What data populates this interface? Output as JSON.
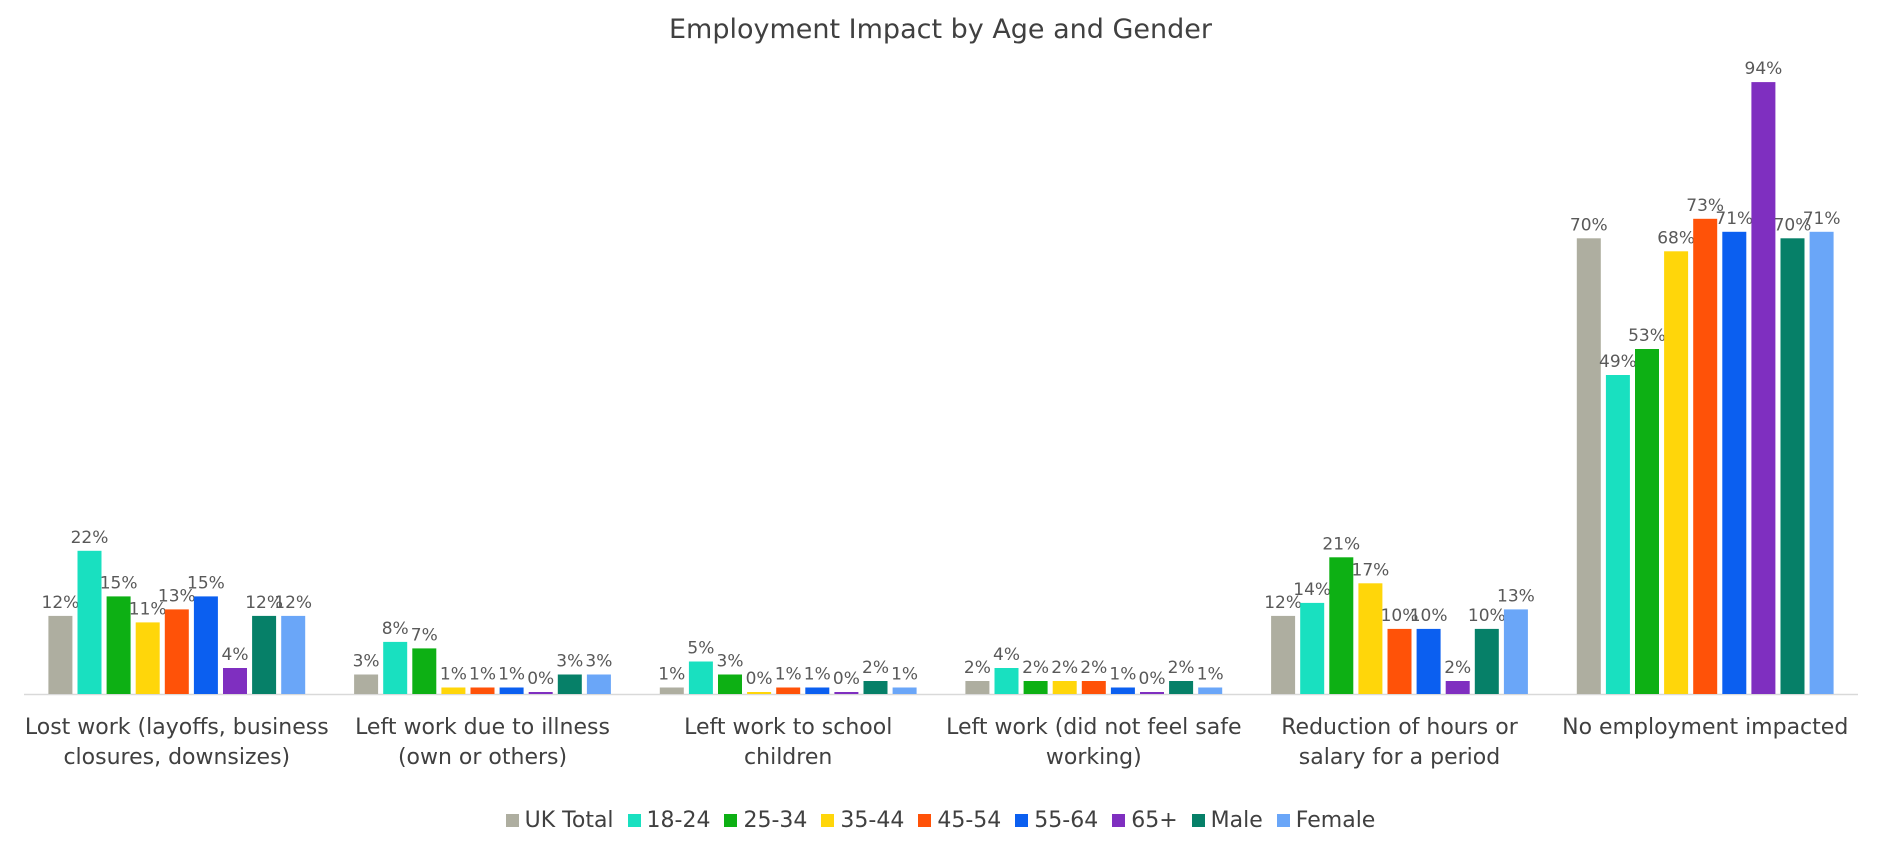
{
  "chart_data": {
    "type": "bar",
    "title": "Employment Impact by Age and Gender",
    "xlabel": "",
    "ylabel": "",
    "ylim": [
      0,
      100
    ],
    "grid": false,
    "legend_position": "bottom",
    "categories": [
      [
        "Lost work (layoffs, business",
        "closures, downsizes)"
      ],
      [
        "Left work due to illness",
        "(own or others)"
      ],
      [
        "Left work to school",
        "children"
      ],
      [
        "Left work (did not feel safe",
        "working)"
      ],
      [
        "Reduction of hours or",
        "salary for a period"
      ],
      [
        "No employment impacted"
      ]
    ],
    "series": [
      {
        "name": "UK Total",
        "color": "#aeaea0",
        "values": [
          12,
          3,
          1,
          2,
          12,
          70
        ]
      },
      {
        "name": "18-24",
        "color": "#19e0c0",
        "values": [
          22,
          8,
          5,
          4,
          14,
          49
        ]
      },
      {
        "name": "25-34",
        "color": "#0db014",
        "values": [
          15,
          7,
          3,
          2,
          21,
          53
        ]
      },
      {
        "name": "35-44",
        "color": "#ffd60a",
        "values": [
          11,
          1,
          0,
          2,
          17,
          68
        ]
      },
      {
        "name": "45-54",
        "color": "#ff5208",
        "values": [
          13,
          1,
          1,
          2,
          10,
          73
        ]
      },
      {
        "name": "55-64",
        "color": "#0b5ff0",
        "values": [
          15,
          1,
          1,
          1,
          10,
          71
        ]
      },
      {
        "name": "65+",
        "color": "#7f2fc0",
        "values": [
          4,
          0,
          0,
          0,
          2,
          94
        ]
      },
      {
        "name": "Male",
        "color": "#068068",
        "values": [
          12,
          3,
          2,
          2,
          10,
          70
        ]
      },
      {
        "name": "Female",
        "color": "#6aa6f8",
        "values": [
          12,
          3,
          1,
          1,
          13,
          71
        ]
      }
    ],
    "value_suffix": "%"
  }
}
